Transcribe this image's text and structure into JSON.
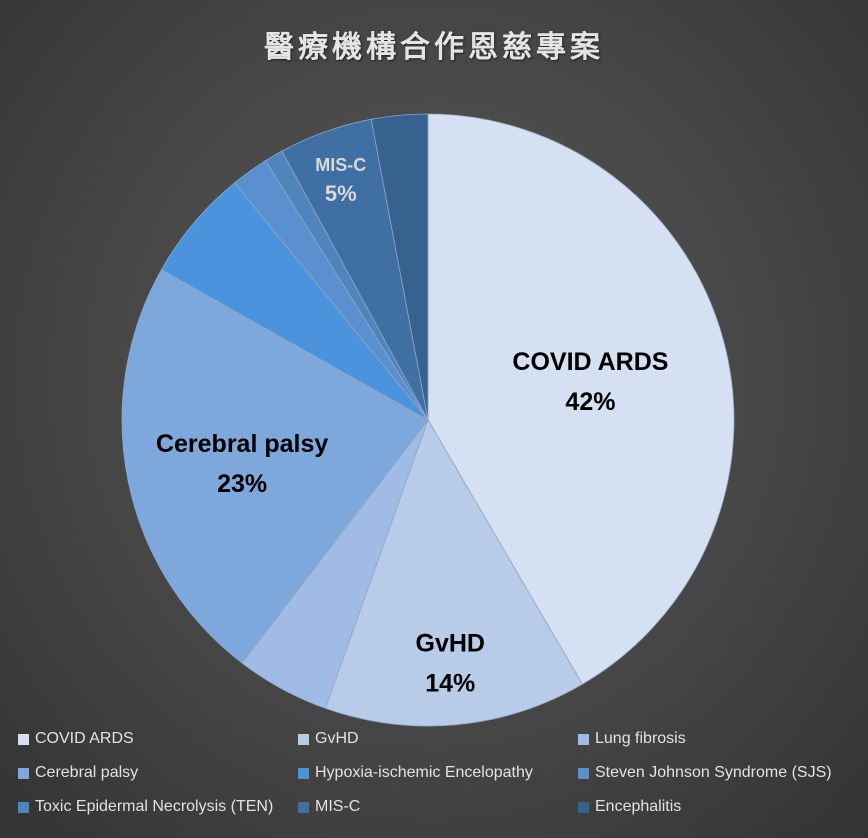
{
  "chart_data": {
    "type": "pie",
    "title": "醫療機構合作恩慈專案",
    "categories": [
      "COVID ARDS",
      "GvHD",
      "Lung fibrosis",
      "Cerebral palsy",
      "Hypoxia-ischemic Encelopathy",
      "Steven Johnson Syndrome (SJS)",
      "Toxic Epidermal Necrolysis (TEN)",
      "MIS-C",
      "Encephalitis"
    ],
    "values": [
      42,
      14,
      5,
      23,
      6,
      2,
      1,
      5,
      3
    ],
    "data_labels": [
      {
        "name": "COVID ARDS",
        "value": "42%"
      },
      {
        "name": "GvHD",
        "value": "14%"
      },
      {
        "name": "",
        "value": ""
      },
      {
        "name": "Cerebral palsy",
        "value": "23%"
      },
      {
        "name": "",
        "value": ""
      },
      {
        "name": "",
        "value": ""
      },
      {
        "name": "",
        "value": ""
      },
      {
        "name": "MIS-C",
        "value": "5%"
      },
      {
        "name": "",
        "value": ""
      }
    ],
    "colors": [
      "#d5e0f3",
      "#b8ccea",
      "#a0bce6",
      "#7ea8dc",
      "#4b93dc",
      "#5a90cf",
      "#4f84bd",
      "#3f6fa3",
      "#37628f"
    ],
    "label_colors": [
      "#000000",
      "#000000",
      "#000000",
      "#000000",
      "#000000",
      "#000000",
      "#000000",
      "#d8d8d8",
      "#000000"
    ],
    "legend_position": "bottom",
    "start_angle": "12 o'clock",
    "direction": "clockwise"
  }
}
